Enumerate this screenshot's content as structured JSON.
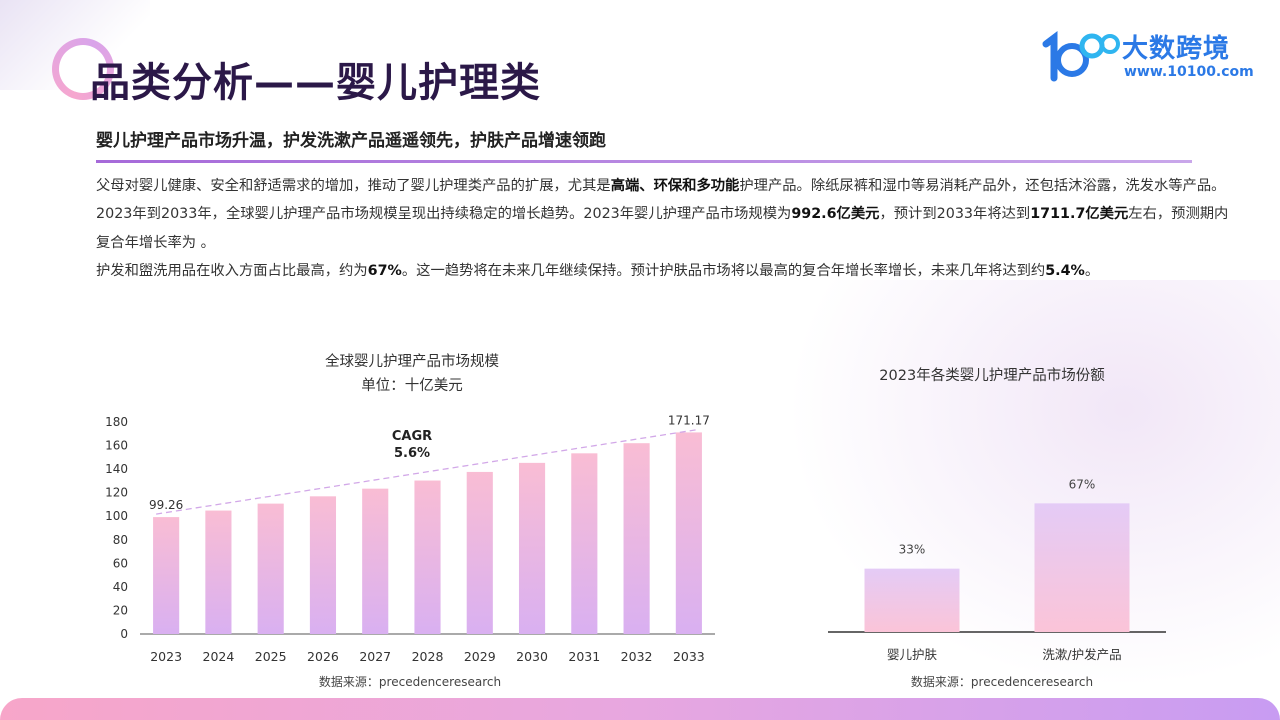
{
  "header": {
    "title": "品类分析——婴儿护理类",
    "subtitle": "婴儿护理产品市场升温，护发洗漱产品遥遥领先，护肤产品增速领跑"
  },
  "logo": {
    "name": "大数跨境",
    "url": "www.10100.com"
  },
  "body": {
    "p1": [
      {
        "text": "父母对婴儿健康、安全和舒适需求的增加，推动了婴儿护理类产品的扩展，尤其是",
        "bold": false
      },
      {
        "text": "高端、环保和多功能",
        "bold": true
      },
      {
        "text": "护理产品。除纸尿裤和湿巾等易消耗产品外，还包括沐浴露，洗发水等产品。",
        "bold": false
      }
    ],
    "p2": [
      {
        "text": "2023年到2033年，全球婴儿护理产品市场规模呈现出持续稳定的增长趋势。2023年婴儿护理产品市场规模为",
        "bold": false
      },
      {
        "text": "992.6亿美元",
        "bold": true
      },
      {
        "text": "，预计到2033年将达到",
        "bold": false
      },
      {
        "text": "1711.7亿美元",
        "bold": true
      },
      {
        "text": "左右，预测期内复合年增长率为 。",
        "bold": false
      }
    ],
    "p3": [
      {
        "text": "护发和盥洗用品在收入方面占比最高，约为",
        "bold": false
      },
      {
        "text": "67%",
        "bold": true
      },
      {
        "text": "。这一趋势将在未来几年继续保持。预计护肤品市场将以最高的复合年增长率增长，未来几年将达到约",
        "bold": false
      },
      {
        "text": "5.4%",
        "bold": true
      },
      {
        "text": "。",
        "bold": false
      }
    ]
  },
  "chart_data": [
    {
      "type": "bar",
      "title": "全球婴儿护理产品市场规模",
      "subtitle": "单位：十亿美元",
      "categories": [
        "2023",
        "2024",
        "2025",
        "2026",
        "2027",
        "2028",
        "2029",
        "2030",
        "2031",
        "2032",
        "2033"
      ],
      "values": [
        99.26,
        104.8,
        110.7,
        116.9,
        123.4,
        130.3,
        137.6,
        145.3,
        153.4,
        162.0,
        171.17
      ],
      "data_labels": {
        "0": "99.26",
        "10": "171.17"
      },
      "ylim": [
        0,
        180
      ],
      "yticks": [
        0,
        20,
        40,
        60,
        80,
        100,
        120,
        140,
        160,
        180
      ],
      "annotation": "CAGR\n5.6%",
      "trend_line": true,
      "source": "数据来源：precedenceresearch",
      "colors": {
        "bar_top": "#f9bdd4",
        "bar_bottom": "#d9b0f1",
        "trend": "#d2a8e8"
      }
    },
    {
      "type": "bar",
      "title": "2023年各类婴儿护理产品市场份额",
      "categories": [
        "婴儿护肤",
        "洗漱/护发产品"
      ],
      "values": [
        33,
        67
      ],
      "value_labels": [
        "33%",
        "67%"
      ],
      "unit": "%",
      "ylim": [
        0,
        100
      ],
      "source": "数据来源：precedenceresearch",
      "colors": {
        "bar_a_top": "#e4cbf6",
        "bar_a_bottom": "#fbc4d8",
        "bar_b_top": "#e4cbf6",
        "bar_b_bottom": "#fbc4d8"
      }
    }
  ]
}
